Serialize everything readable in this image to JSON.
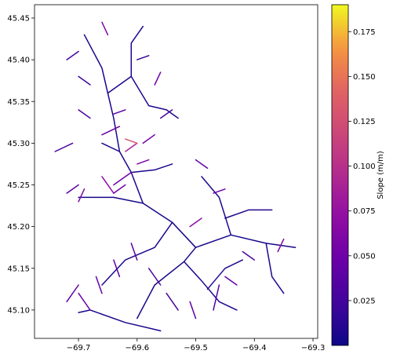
{
  "chart_data": {
    "type": "map",
    "title": "",
    "xlabel": "",
    "ylabel": "",
    "x_range": [
      -69.775,
      -69.292
    ],
    "y_range": [
      45.066,
      45.466
    ],
    "x_ticks": [
      -69.7,
      -69.6,
      -69.5,
      -69.4,
      -69.3
    ],
    "x_tick_labels": [
      "−69.7",
      "−69.6",
      "−69.5",
      "−69.4",
      "−69.3"
    ],
    "y_ticks": [
      45.1,
      45.15,
      45.2,
      45.25,
      45.3,
      45.35,
      45.4,
      45.45
    ],
    "y_tick_labels": [
      "45.10",
      "45.15",
      "45.20",
      "45.25",
      "45.30",
      "45.35",
      "45.40",
      "45.45"
    ],
    "grid": false,
    "colorbar": {
      "label": "Slope (m/m)",
      "colormap": "plasma",
      "range": [
        0.0,
        0.19
      ],
      "ticks": [
        0.025,
        0.05,
        0.075,
        0.1,
        0.125,
        0.15,
        0.175
      ],
      "tick_labels": [
        "0.025",
        "0.050",
        "0.075",
        "0.100",
        "0.125",
        "0.150",
        "0.175"
      ]
    },
    "colors": {
      "low": "#0d0887",
      "mid": "#9c179e",
      "high": "#f0f921"
    },
    "streams": [
      {
        "slope": 0.005,
        "pts": [
          [
            -69.56,
            45.075
          ],
          [
            -69.62,
            45.085
          ],
          [
            -69.68,
            45.1
          ],
          [
            -69.7,
            45.097
          ]
        ]
      },
      {
        "slope": 0.004,
        "pts": [
          [
            -69.6,
            45.09
          ],
          [
            -69.57,
            45.13
          ],
          [
            -69.52,
            45.158
          ],
          [
            -69.5,
            45.175
          ],
          [
            -69.44,
            45.19
          ],
          [
            -69.38,
            45.18
          ],
          [
            -69.33,
            45.175
          ]
        ]
      },
      {
        "slope": 0.006,
        "pts": [
          [
            -69.52,
            45.158
          ],
          [
            -69.49,
            45.135
          ],
          [
            -69.46,
            45.11
          ],
          [
            -69.43,
            45.1
          ]
        ]
      },
      {
        "slope": 0.004,
        "pts": [
          [
            -69.5,
            45.175
          ],
          [
            -69.54,
            45.205
          ],
          [
            -69.59,
            45.228
          ],
          [
            -69.64,
            45.235
          ],
          [
            -69.7,
            45.235
          ]
        ]
      },
      {
        "slope": 0.006,
        "pts": [
          [
            -69.59,
            45.228
          ],
          [
            -69.61,
            45.265
          ],
          [
            -69.63,
            45.29
          ],
          [
            -69.66,
            45.3
          ]
        ]
      },
      {
        "slope": 0.005,
        "pts": [
          [
            -69.63,
            45.29
          ],
          [
            -69.64,
            45.33
          ],
          [
            -69.65,
            45.36
          ],
          [
            -69.66,
            45.39
          ],
          [
            -69.69,
            45.43
          ]
        ]
      },
      {
        "slope": 0.006,
        "pts": [
          [
            -69.65,
            45.36
          ],
          [
            -69.61,
            45.38
          ],
          [
            -69.61,
            45.42
          ],
          [
            -69.59,
            45.44
          ]
        ]
      },
      {
        "slope": 0.008,
        "pts": [
          [
            -69.61,
            45.38
          ],
          [
            -69.58,
            45.345
          ],
          [
            -69.55,
            45.34
          ],
          [
            -69.53,
            45.33
          ]
        ]
      },
      {
        "slope": 0.005,
        "pts": [
          [
            -69.61,
            45.265
          ],
          [
            -69.57,
            45.268
          ],
          [
            -69.54,
            45.275
          ]
        ]
      },
      {
        "slope": 0.006,
        "pts": [
          [
            -69.54,
            45.205
          ],
          [
            -69.57,
            45.175
          ],
          [
            -69.62,
            45.16
          ],
          [
            -69.66,
            45.13
          ]
        ]
      },
      {
        "slope": 0.007,
        "pts": [
          [
            -69.44,
            45.19
          ],
          [
            -69.46,
            45.235
          ],
          [
            -69.49,
            45.26
          ]
        ]
      },
      {
        "slope": 0.007,
        "pts": [
          [
            -69.38,
            45.18
          ],
          [
            -69.37,
            45.14
          ],
          [
            -69.35,
            45.12
          ]
        ]
      },
      {
        "slope": 0.009,
        "pts": [
          [
            -69.45,
            45.21
          ],
          [
            -69.41,
            45.22
          ],
          [
            -69.37,
            45.22
          ]
        ]
      },
      {
        "slope": 0.01,
        "pts": [
          [
            -69.48,
            45.125
          ],
          [
            -69.45,
            45.15
          ],
          [
            -69.42,
            45.16
          ]
        ]
      },
      {
        "slope": 0.05,
        "pts": [
          [
            -69.64,
            45.25
          ],
          [
            -69.61,
            45.265
          ]
        ]
      },
      {
        "slope": 0.07,
        "pts": [
          [
            -69.66,
            45.26
          ],
          [
            -69.64,
            45.24
          ]
        ]
      },
      {
        "slope": 0.09,
        "pts": [
          [
            -69.62,
            45.29
          ],
          [
            -69.6,
            45.3
          ]
        ]
      },
      {
        "slope": 0.13,
        "pts": [
          [
            -69.62,
            45.305
          ],
          [
            -69.6,
            45.3
          ]
        ]
      },
      {
        "slope": 0.06,
        "pts": [
          [
            -69.6,
            45.275
          ],
          [
            -69.58,
            45.28
          ]
        ]
      },
      {
        "slope": 0.045,
        "pts": [
          [
            -69.66,
            45.31
          ],
          [
            -69.63,
            45.32
          ]
        ]
      },
      {
        "slope": 0.04,
        "pts": [
          [
            -69.64,
            45.335
          ],
          [
            -69.62,
            45.34
          ]
        ]
      },
      {
        "slope": 0.05,
        "pts": [
          [
            -69.57,
            45.31
          ],
          [
            -69.59,
            45.3
          ]
        ]
      },
      {
        "slope": 0.03,
        "pts": [
          [
            -69.7,
            45.34
          ],
          [
            -69.68,
            45.33
          ]
        ]
      },
      {
        "slope": 0.06,
        "pts": [
          [
            -69.65,
            45.43
          ],
          [
            -69.66,
            45.445
          ]
        ]
      },
      {
        "slope": 0.02,
        "pts": [
          [
            -69.7,
            45.38
          ],
          [
            -69.68,
            45.37
          ]
        ]
      },
      {
        "slope": 0.03,
        "pts": [
          [
            -69.74,
            45.29
          ],
          [
            -69.71,
            45.3
          ]
        ]
      },
      {
        "slope": 0.04,
        "pts": [
          [
            -69.72,
            45.24
          ],
          [
            -69.7,
            45.25
          ]
        ]
      },
      {
        "slope": 0.06,
        "pts": [
          [
            -69.7,
            45.23
          ],
          [
            -69.69,
            45.245
          ]
        ]
      },
      {
        "slope": 0.05,
        "pts": [
          [
            -69.64,
            45.24
          ],
          [
            -69.62,
            45.25
          ]
        ]
      },
      {
        "slope": 0.04,
        "pts": [
          [
            -69.72,
            45.11
          ],
          [
            -69.7,
            45.13
          ]
        ]
      },
      {
        "slope": 0.05,
        "pts": [
          [
            -69.68,
            45.1
          ],
          [
            -69.7,
            45.12
          ]
        ]
      },
      {
        "slope": 0.045,
        "pts": [
          [
            -69.66,
            45.12
          ],
          [
            -69.67,
            45.14
          ]
        ]
      },
      {
        "slope": 0.04,
        "pts": [
          [
            -69.63,
            45.14
          ],
          [
            -69.64,
            45.16
          ]
        ]
      },
      {
        "slope": 0.035,
        "pts": [
          [
            -69.6,
            45.16
          ],
          [
            -69.61,
            45.18
          ]
        ]
      },
      {
        "slope": 0.03,
        "pts": [
          [
            -69.56,
            45.13
          ],
          [
            -69.58,
            45.15
          ]
        ]
      },
      {
        "slope": 0.025,
        "pts": [
          [
            -69.53,
            45.1
          ],
          [
            -69.55,
            45.12
          ]
        ]
      },
      {
        "slope": 0.04,
        "pts": [
          [
            -69.5,
            45.09
          ],
          [
            -69.51,
            45.11
          ]
        ]
      },
      {
        "slope": 0.035,
        "pts": [
          [
            -69.47,
            45.1
          ],
          [
            -69.46,
            45.13
          ]
        ]
      },
      {
        "slope": 0.045,
        "pts": [
          [
            -69.43,
            45.13
          ],
          [
            -69.45,
            45.14
          ]
        ]
      },
      {
        "slope": 0.03,
        "pts": [
          [
            -69.4,
            45.16
          ],
          [
            -69.42,
            45.17
          ]
        ]
      },
      {
        "slope": 0.06,
        "pts": [
          [
            -69.36,
            45.17
          ],
          [
            -69.35,
            45.185
          ]
        ]
      },
      {
        "slope": 0.07,
        "pts": [
          [
            -69.49,
            45.21
          ],
          [
            -69.51,
            45.2
          ]
        ]
      },
      {
        "slope": 0.05,
        "pts": [
          [
            -69.47,
            45.24
          ],
          [
            -69.45,
            45.245
          ]
        ]
      },
      {
        "slope": 0.04,
        "pts": [
          [
            -69.48,
            45.27
          ],
          [
            -69.5,
            45.28
          ]
        ]
      },
      {
        "slope": 0.03,
        "pts": [
          [
            -69.56,
            45.33
          ],
          [
            -69.54,
            45.34
          ]
        ]
      },
      {
        "slope": 0.05,
        "pts": [
          [
            -69.57,
            45.37
          ],
          [
            -69.56,
            45.385
          ]
        ]
      },
      {
        "slope": 0.02,
        "pts": [
          [
            -69.6,
            45.4
          ],
          [
            -69.58,
            45.405
          ]
        ]
      },
      {
        "slope": 0.025,
        "pts": [
          [
            -69.72,
            45.4
          ],
          [
            -69.7,
            45.41
          ]
        ]
      }
    ]
  }
}
